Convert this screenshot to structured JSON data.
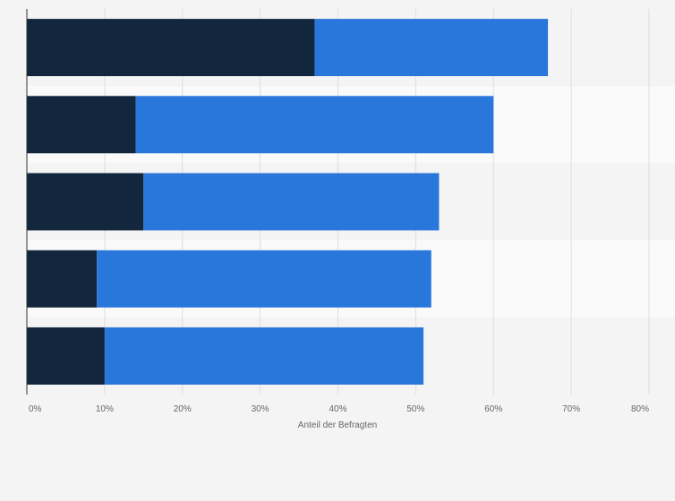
{
  "chart_data": {
    "type": "bar",
    "orientation": "horizontal",
    "stacked": true,
    "categories": [
      "",
      "",
      "",
      "",
      ""
    ],
    "series": [
      {
        "values": [
          37,
          14,
          15,
          9,
          10
        ],
        "color": "#12263d"
      },
      {
        "values": [
          30,
          46,
          38,
          43,
          41
        ],
        "color": "#2a77dc"
      }
    ],
    "xlabel": "Anteil der Befragten",
    "ylabel": "",
    "xlim": [
      0,
      80
    ],
    "xticks": [
      0,
      10,
      20,
      30,
      40,
      50,
      60,
      70,
      80
    ],
    "xtick_labels": [
      "0%",
      "10%",
      "20%",
      "30%",
      "40%",
      "50%",
      "60%",
      "70%",
      "80%"
    ],
    "grid": true,
    "legend": "none"
  }
}
